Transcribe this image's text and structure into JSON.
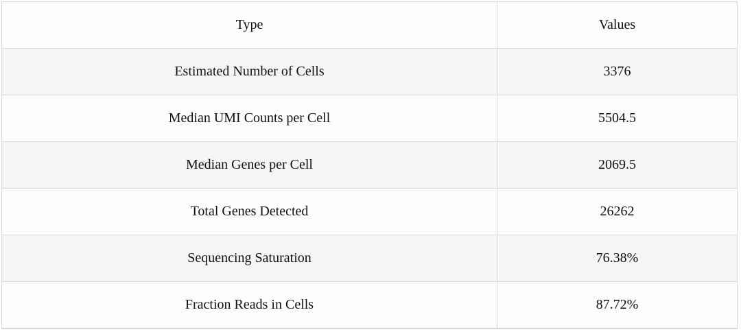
{
  "table": {
    "headers": {
      "type": "Type",
      "values": "Values"
    },
    "rows": [
      {
        "type": "Estimated Number of Cells",
        "value": "3376"
      },
      {
        "type": "Median UMI Counts per Cell",
        "value": "5504.5"
      },
      {
        "type": "Median Genes per Cell",
        "value": "2069.5"
      },
      {
        "type": "Total Genes Detected",
        "value": "26262"
      },
      {
        "type": "Sequencing Saturation",
        "value": "76.38%"
      },
      {
        "type": "Fraction Reads in Cells",
        "value": "87.72%"
      }
    ]
  },
  "colors": {
    "row_bg": "#fdfdfd",
    "row_alt_bg": "#f5f5f5",
    "border": "#d8d8d8",
    "text": "#111111"
  },
  "chart_data": {
    "type": "table",
    "columns": [
      "Type",
      "Values"
    ],
    "rows": [
      [
        "Estimated Number of Cells",
        3376
      ],
      [
        "Median UMI Counts per Cell",
        5504.5
      ],
      [
        "Median Genes per Cell",
        2069.5
      ],
      [
        "Total Genes Detected",
        26262
      ],
      [
        "Sequencing Saturation",
        "76.38%"
      ],
      [
        "Fraction Reads in Cells",
        "87.72%"
      ]
    ]
  }
}
